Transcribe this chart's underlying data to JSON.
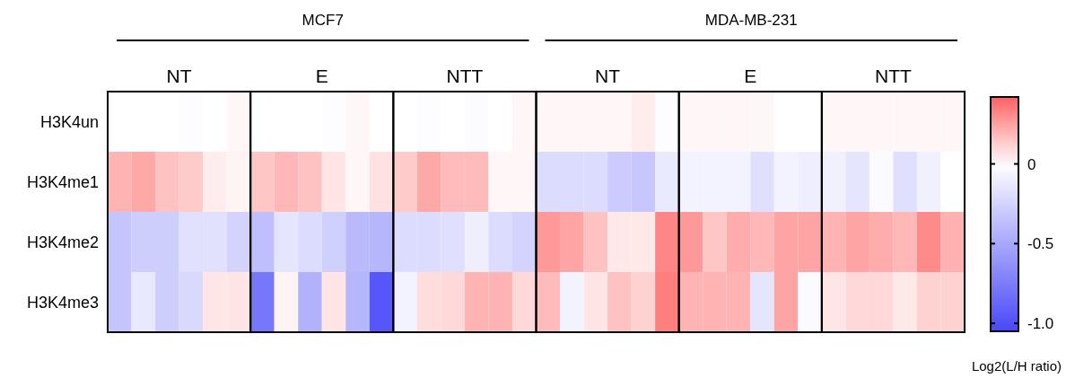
{
  "chart_data": {
    "type": "heatmap",
    "categories": [
      null,
      null,
      null,
      null,
      null,
      null,
      null,
      null,
      null,
      null,
      null,
      null,
      null,
      null,
      null,
      null,
      null,
      null,
      null,
      null,
      null,
      null,
      null,
      null,
      null,
      null,
      null,
      null,
      null,
      null,
      null,
      null,
      null,
      null,
      null,
      null
    ],
    "y_categories": [
      "H3K4un",
      "H3K4me1",
      "H3K4me2",
      "H3K4me3"
    ],
    "cells": [
      [
        0,
        0,
        0,
        -0.01,
        0,
        0.02,
        0,
        0,
        0,
        -0.01,
        0.02,
        0,
        0,
        -0.01,
        0,
        -0.02,
        0,
        0.02,
        0.02,
        0.02,
        0.02,
        0.02,
        0.05,
        -0.01,
        0.02,
        0.02,
        0.02,
        0.02,
        0,
        0,
        0.02,
        0.02,
        0.02,
        0.02,
        0.02,
        0.02
      ],
      [
        0.2,
        0.23,
        0.16,
        0.14,
        0.05,
        0.03,
        0.15,
        0.19,
        0.16,
        0.07,
        0.02,
        0.08,
        0.14,
        0.23,
        0.18,
        0.18,
        0.02,
        0.02,
        -0.2,
        -0.2,
        -0.2,
        -0.3,
        -0.32,
        -0.12,
        -0.07,
        -0.07,
        -0.07,
        -0.18,
        -0.07,
        -0.1,
        -0.08,
        -0.15,
        -0.03,
        -0.18,
        -0.08,
        0
      ],
      [
        -0.33,
        -0.28,
        -0.28,
        -0.17,
        -0.17,
        -0.25,
        -0.37,
        -0.15,
        -0.2,
        -0.27,
        -0.4,
        -0.42,
        -0.2,
        -0.2,
        -0.18,
        -0.1,
        -0.2,
        -0.25,
        0.27,
        0.24,
        0.16,
        0.06,
        0.06,
        0.32,
        0.27,
        0.15,
        0.22,
        0.19,
        0.24,
        0.24,
        0.2,
        0.24,
        0.22,
        0.19,
        0.31,
        0.21
      ],
      [
        -0.33,
        -0.13,
        -0.28,
        -0.22,
        0.07,
        0.07,
        -0.78,
        0.03,
        -0.44,
        0.07,
        -0.42,
        -0.97,
        -0.07,
        0.09,
        0.1,
        0.2,
        0.2,
        0.1,
        0.18,
        -0.07,
        0.07,
        0.16,
        0.12,
        0.34,
        0.2,
        0.2,
        0.2,
        -0.15,
        0.24,
        -0.03,
        0.07,
        0.1,
        0.1,
        0.06,
        0.12,
        0.12
      ]
    ],
    "clim": [
      -1.05,
      0.42
    ],
    "cticks": [
      0,
      -0.5,
      {
        "value": -1,
        "label": "-1.0"
      }
    ],
    "clabel": "Log2(L/H ratio)",
    "annotations": [
      "MCF7",
      "MDA-MB-231",
      "NT",
      "E",
      "NTT",
      "NT",
      "E",
      "NTT"
    ]
  }
}
